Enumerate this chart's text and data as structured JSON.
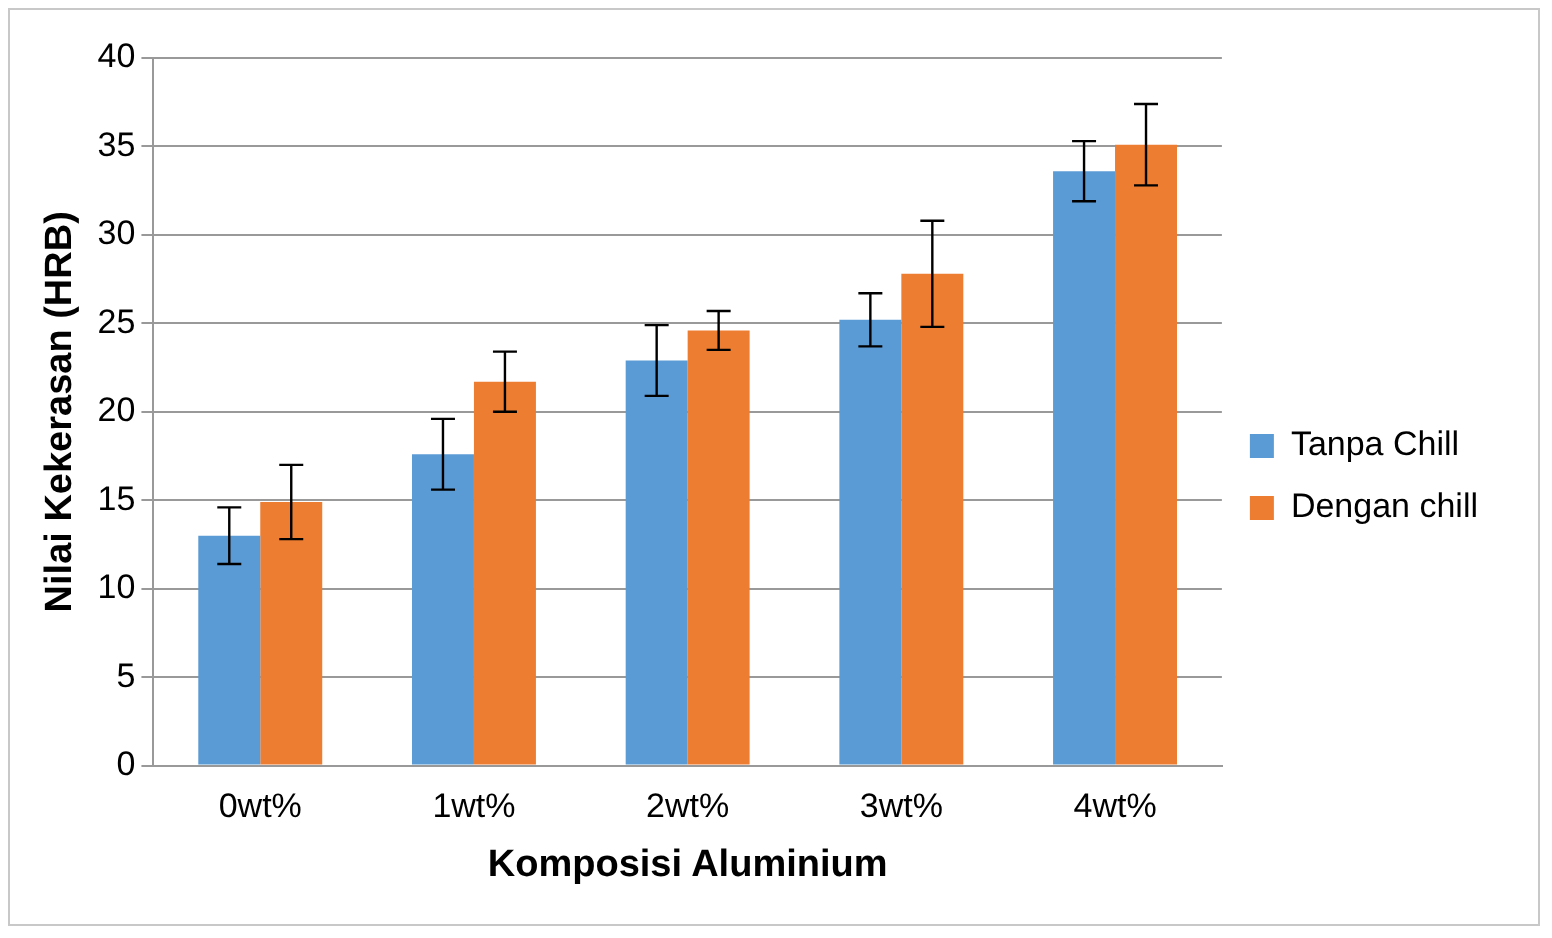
{
  "chart_data": {
    "type": "bar",
    "xlabel": "Komposisi Aluminium",
    "ylabel": "Nilai Kekerasan (HRB)",
    "categories": [
      "0wt%",
      "1wt%",
      "2wt%",
      "3wt%",
      "4wt%"
    ],
    "series": [
      {
        "name": "Tanpa Chill",
        "color": "#5b9bd5",
        "values": [
          13.0,
          17.6,
          22.9,
          25.2,
          33.6
        ],
        "errors": [
          1.6,
          2.0,
          2.0,
          1.5,
          1.7
        ]
      },
      {
        "name": "Dengan chill",
        "color": "#ed7d31",
        "values": [
          14.9,
          21.7,
          24.6,
          27.8,
          35.1
        ],
        "errors": [
          2.1,
          1.7,
          1.1,
          3.0,
          2.3
        ]
      }
    ],
    "ylim": [
      0,
      40
    ],
    "yticks": [
      0,
      5,
      10,
      15,
      20,
      25,
      30,
      35,
      40
    ],
    "grid": "y",
    "legend": "right"
  }
}
